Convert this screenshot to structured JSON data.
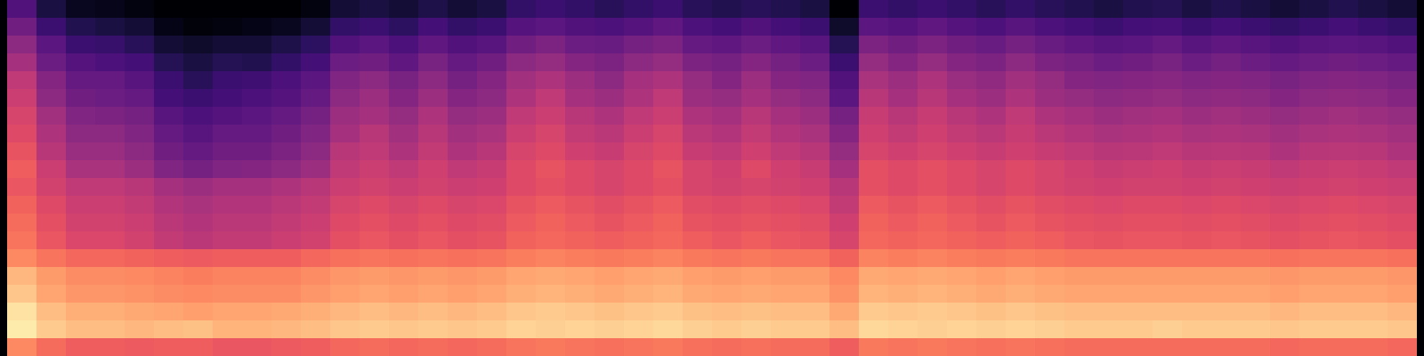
{
  "chart_data": {
    "type": "heatmap",
    "tick_labels": false,
    "color": "magma",
    "zlim": [
      0,
      100
    ],
    "cells": [
      [
        25,
        12,
        6,
        5,
        3,
        0,
        0,
        0,
        0,
        0,
        3,
        10,
        12,
        10,
        13,
        10,
        12,
        18,
        20,
        18,
        16,
        18,
        20,
        16,
        14,
        16,
        14,
        12,
        0,
        20,
        18,
        20,
        18,
        16,
        18,
        16,
        14,
        12,
        14,
        15,
        12,
        14,
        12,
        10,
        12,
        14,
        12,
        10
      ],
      [
        33,
        20,
        14,
        12,
        10,
        4,
        2,
        3,
        4,
        6,
        10,
        18,
        20,
        17,
        22,
        18,
        20,
        26,
        28,
        25,
        24,
        26,
        29,
        24,
        22,
        25,
        22,
        20,
        8,
        28,
        26,
        29,
        26,
        24,
        27,
        24,
        22,
        20,
        22,
        23,
        20,
        22,
        20,
        18,
        20,
        22,
        20,
        18
      ],
      [
        40,
        28,
        20,
        19,
        16,
        10,
        8,
        10,
        10,
        13,
        17,
        25,
        28,
        24,
        29,
        25,
        27,
        33,
        36,
        32,
        31,
        34,
        36,
        30,
        29,
        32,
        29,
        27,
        15,
        36,
        33,
        36,
        33,
        31,
        34,
        31,
        29,
        27,
        28,
        30,
        27,
        29,
        27,
        25,
        27,
        28,
        27,
        25
      ],
      [
        46,
        32,
        26,
        24,
        22,
        15,
        12,
        15,
        14,
        18,
        22,
        32,
        33,
        29,
        35,
        30,
        33,
        40,
        42,
        38,
        36,
        40,
        42,
        36,
        34,
        38,
        34,
        32,
        20,
        42,
        38,
        42,
        38,
        36,
        40,
        36,
        34,
        32,
        33,
        35,
        32,
        34,
        32,
        30,
        32,
        33,
        32,
        30
      ],
      [
        52,
        38,
        30,
        30,
        27,
        20,
        16,
        20,
        21,
        24,
        28,
        37,
        40,
        35,
        40,
        34,
        38,
        45,
        48,
        44,
        40,
        46,
        48,
        42,
        38,
        44,
        38,
        37,
        25,
        47,
        44,
        48,
        43,
        41,
        45,
        42,
        38,
        37,
        38,
        39,
        37,
        38,
        37,
        35,
        37,
        38,
        37,
        35
      ],
      [
        55,
        40,
        33,
        32,
        30,
        22,
        20,
        22,
        24,
        26,
        30,
        40,
        44,
        38,
        44,
        38,
        40,
        48,
        52,
        46,
        44,
        48,
        52,
        44,
        42,
        46,
        42,
        40,
        28,
        50,
        46,
        50,
        46,
        44,
        48,
        44,
        42,
        40,
        41,
        42,
        40,
        41,
        40,
        38,
        40,
        41,
        40,
        38
      ],
      [
        58,
        45,
        37,
        36,
        34,
        27,
        24,
        26,
        28,
        30,
        34,
        44,
        46,
        42,
        48,
        42,
        44,
        52,
        55,
        50,
        48,
        52,
        55,
        48,
        46,
        50,
        46,
        44,
        34,
        54,
        50,
        54,
        50,
        48,
        52,
        48,
        46,
        44,
        45,
        46,
        44,
        45,
        44,
        42,
        44,
        45,
        44,
        42
      ],
      [
        60,
        48,
        40,
        40,
        37,
        30,
        27,
        30,
        30,
        33,
        37,
        46,
        50,
        45,
        50,
        45,
        47,
        55,
        58,
        53,
        51,
        55,
        58,
        51,
        49,
        53,
        49,
        47,
        38,
        56,
        53,
        56,
        53,
        51,
        54,
        51,
        49,
        47,
        48,
        49,
        47,
        48,
        47,
        45,
        47,
        48,
        47,
        45
      ],
      [
        63,
        50,
        43,
        43,
        40,
        33,
        30,
        33,
        33,
        36,
        40,
        50,
        52,
        48,
        53,
        48,
        50,
        58,
        60,
        56,
        54,
        58,
        60,
        54,
        52,
        56,
        52,
        50,
        42,
        58,
        56,
        58,
        56,
        54,
        56,
        54,
        52,
        50,
        51,
        52,
        50,
        51,
        50,
        48,
        50,
        51,
        50,
        48
      ],
      [
        66,
        55,
        47,
        47,
        44,
        37,
        34,
        37,
        38,
        40,
        44,
        52,
        55,
        52,
        56,
        52,
        54,
        60,
        63,
        60,
        58,
        60,
        63,
        58,
        56,
        60,
        56,
        54,
        46,
        62,
        60,
        62,
        60,
        58,
        60,
        58,
        56,
        54,
        55,
        56,
        54,
        55,
        54,
        52,
        54,
        55,
        54,
        52
      ],
      [
        64,
        57,
        52,
        52,
        50,
        46,
        44,
        46,
        46,
        48,
        50,
        55,
        57,
        55,
        57,
        55,
        56,
        60,
        62,
        60,
        58,
        60,
        62,
        58,
        57,
        58,
        57,
        56,
        50,
        62,
        60,
        62,
        60,
        58,
        60,
        58,
        57,
        56,
        57,
        57,
        56,
        57,
        56,
        55,
        56,
        57,
        56,
        55
      ],
      [
        67,
        60,
        55,
        55,
        53,
        49,
        47,
        49,
        49,
        51,
        53,
        58,
        60,
        58,
        60,
        58,
        59,
        63,
        65,
        63,
        61,
        63,
        65,
        61,
        60,
        61,
        60,
        59,
        53,
        65,
        63,
        65,
        63,
        61,
        63,
        61,
        60,
        59,
        60,
        60,
        59,
        60,
        59,
        58,
        59,
        60,
        59,
        58
      ],
      [
        69,
        62,
        57,
        57,
        55,
        51,
        49,
        51,
        51,
        53,
        55,
        60,
        62,
        60,
        62,
        60,
        61,
        65,
        67,
        65,
        63,
        65,
        67,
        63,
        62,
        63,
        62,
        61,
        56,
        67,
        65,
        67,
        65,
        63,
        65,
        63,
        62,
        61,
        62,
        62,
        61,
        62,
        61,
        60,
        61,
        62,
        61,
        60
      ],
      [
        71,
        64,
        59,
        59,
        57,
        53,
        51,
        53,
        53,
        55,
        57,
        62,
        64,
        62,
        64,
        62,
        63,
        67,
        68,
        67,
        66,
        67,
        68,
        66,
        64,
        66,
        64,
        63,
        58,
        68,
        67,
        68,
        67,
        66,
        67,
        66,
        64,
        63,
        64,
        64,
        63,
        64,
        63,
        62,
        63,
        64,
        63,
        62
      ],
      [
        75,
        71,
        68,
        68,
        67,
        66,
        65,
        66,
        66,
        66,
        68,
        70,
        71,
        70,
        71,
        70,
        71,
        73,
        74,
        73,
        72,
        73,
        74,
        72,
        71,
        72,
        71,
        71,
        67,
        74,
        73,
        74,
        73,
        72,
        73,
        72,
        71,
        71,
        71,
        71,
        71,
        71,
        71,
        70,
        71,
        71,
        71,
        70
      ],
      [
        85,
        79,
        76,
        76,
        75,
        74,
        73,
        74,
        74,
        74,
        76,
        78,
        79,
        78,
        79,
        78,
        79,
        81,
        82,
        81,
        80,
        81,
        82,
        80,
        79,
        80,
        79,
        79,
        75,
        82,
        81,
        82,
        81,
        80,
        81,
        80,
        79,
        79,
        79,
        79,
        79,
        79,
        79,
        78,
        79,
        79,
        79,
        78
      ],
      [
        88,
        81,
        78,
        78,
        77,
        76,
        75,
        76,
        76,
        76,
        78,
        80,
        81,
        80,
        81,
        80,
        81,
        83,
        84,
        83,
        82,
        83,
        84,
        82,
        81,
        82,
        81,
        81,
        77,
        84,
        83,
        84,
        83,
        82,
        83,
        82,
        81,
        81,
        81,
        81,
        81,
        81,
        81,
        80,
        81,
        81,
        81,
        80
      ],
      [
        94,
        86,
        83,
        83,
        82,
        81,
        80,
        81,
        81,
        82,
        83,
        85,
        86,
        85,
        86,
        85,
        86,
        88,
        89,
        88,
        87,
        88,
        89,
        87,
        86,
        87,
        86,
        86,
        82,
        89,
        88,
        89,
        88,
        87,
        88,
        87,
        86,
        86,
        86,
        86,
        86,
        86,
        86,
        85,
        86,
        86,
        86,
        85
      ],
      [
        96,
        89,
        86,
        86,
        85,
        86,
        87,
        84,
        84,
        85,
        86,
        88,
        89,
        88,
        89,
        88,
        89,
        91,
        90,
        91,
        90,
        91,
        92,
        90,
        89,
        90,
        89,
        89,
        86,
        92,
        91,
        90,
        91,
        90,
        91,
        90,
        89,
        89,
        89,
        90,
        89,
        89,
        89,
        88,
        89,
        89,
        89,
        88
      ],
      [
        75,
        69,
        66,
        66,
        65,
        66,
        66,
        64,
        64,
        65,
        66,
        68,
        69,
        68,
        69,
        68,
        69,
        71,
        72,
        71,
        70,
        71,
        72,
        70,
        69,
        70,
        69,
        69,
        66,
        72,
        71,
        72,
        71,
        70,
        71,
        70,
        69,
        69,
        69,
        69,
        69,
        69,
        69,
        68,
        69,
        69,
        69,
        68
      ]
    ]
  }
}
